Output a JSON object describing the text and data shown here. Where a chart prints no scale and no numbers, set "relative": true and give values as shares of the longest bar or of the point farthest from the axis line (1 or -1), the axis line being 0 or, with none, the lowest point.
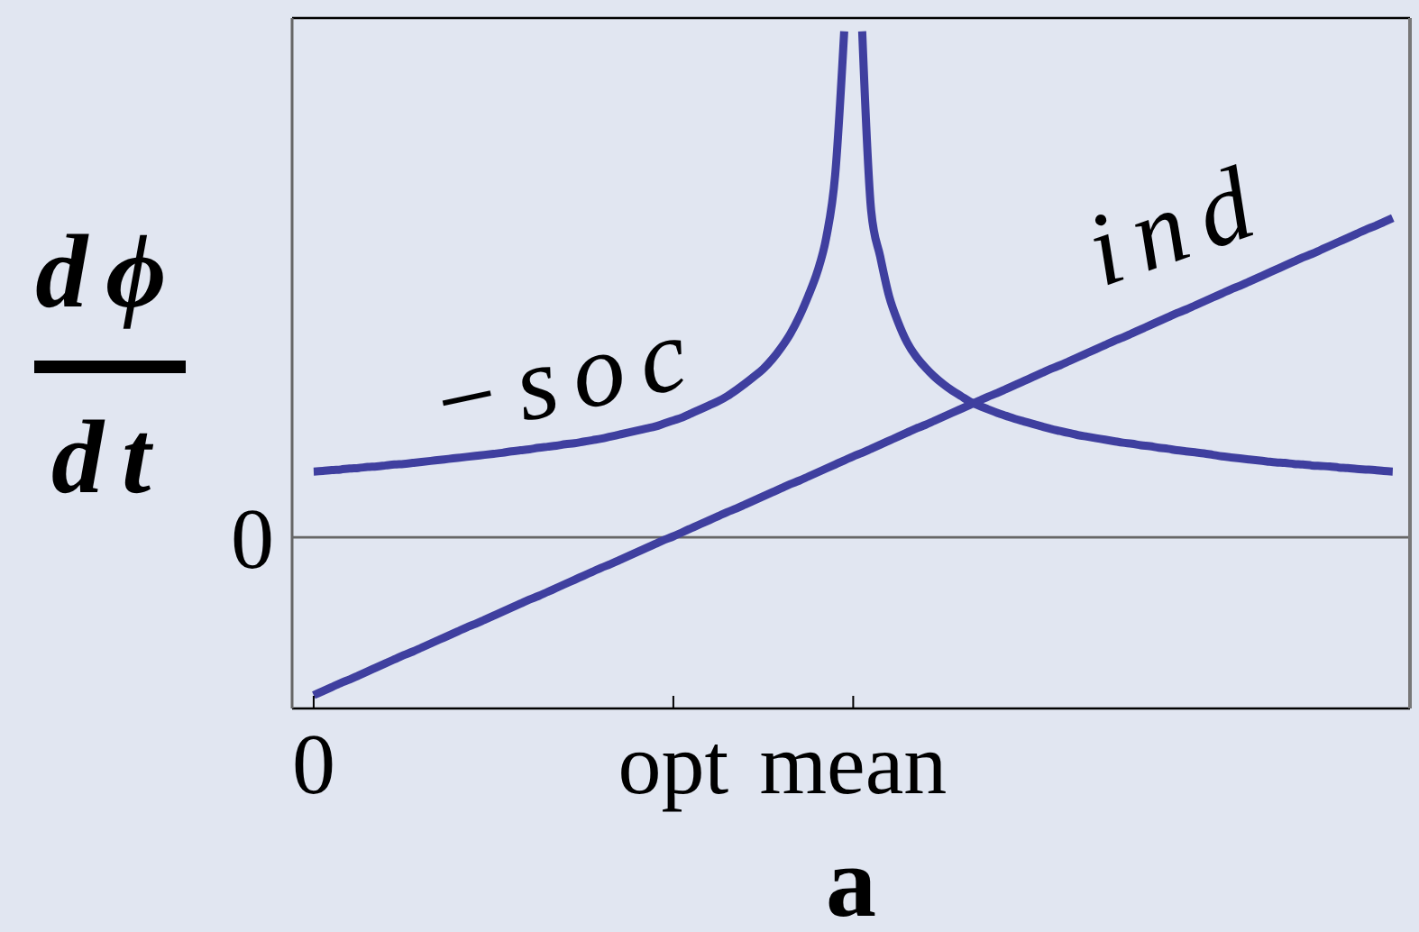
{
  "chart_data": {
    "type": "line",
    "xlabel": "a",
    "ylabel": "dϕ\ndt",
    "relative": true,
    "marker": "none",
    "categories": [
      "0",
      null,
      null,
      null,
      null,
      null,
      null,
      null,
      null,
      null,
      null,
      null,
      null,
      null,
      null,
      null,
      null,
      null,
      null,
      null,
      null,
      null,
      null,
      null,
      null,
      null,
      null,
      null,
      null,
      null,
      null,
      null,
      null,
      null,
      null,
      null,
      null,
      null,
      null,
      null,
      "opt",
      null,
      null,
      null,
      null,
      null,
      null,
      null,
      null,
      null,
      null,
      null,
      null,
      null,
      null,
      null,
      null,
      null,
      null,
      null,
      "mean",
      null,
      null,
      null,
      null,
      null,
      null,
      null,
      null,
      null,
      null,
      null,
      null,
      null,
      null,
      null,
      null,
      null,
      null,
      null,
      null,
      null,
      null,
      null,
      null,
      null,
      null,
      null,
      null,
      null,
      null,
      null,
      null,
      null,
      null,
      null,
      null,
      null,
      null,
      null,
      null,
      null,
      null,
      null,
      null,
      null,
      null,
      null,
      null,
      null,
      null,
      null,
      null,
      null,
      null,
      null,
      null,
      null,
      null,
      null,
      null
    ],
    "series": [
      {
        "name": "−soc",
        "color": "#3f3f9f",
        "values": [
          0.13,
          0.131,
          0.133,
          0.134,
          0.136,
          0.137,
          0.139,
          0.14,
          0.142,
          0.144,
          0.145,
          0.147,
          0.149,
          0.151,
          0.153,
          0.155,
          0.157,
          0.159,
          0.161,
          0.163,
          0.165,
          0.167,
          0.17,
          0.172,
          0.174,
          0.177,
          0.179,
          0.181,
          0.184,
          0.186,
          0.189,
          0.192,
          0.195,
          0.199,
          0.203,
          0.207,
          0.211,
          0.215,
          0.219,
          0.225,
          0.231,
          0.237,
          0.245,
          0.253,
          0.261,
          0.269,
          0.279,
          0.291,
          0.304,
          0.318,
          0.333,
          0.352,
          0.375,
          0.402,
          0.436,
          0.477,
          0.524,
          0.592,
          0.717,
          1,
          null,
          1,
          0.645,
          0.555,
          0.476,
          0.425,
          0.385,
          0.357,
          0.336,
          0.318,
          0.303,
          0.29,
          0.279,
          0.268,
          0.26,
          0.253,
          0.246,
          0.24,
          0.234,
          0.229,
          0.224,
          0.219,
          0.214,
          0.21,
          0.206,
          0.202,
          0.199,
          0.196,
          0.193,
          0.19,
          0.187,
          0.185,
          0.182,
          0.18,
          0.177,
          0.175,
          0.172,
          0.17,
          0.168,
          0.166,
          0.163,
          0.16,
          0.158,
          0.156,
          0.154,
          0.152,
          0.15,
          0.148,
          0.147,
          0.145,
          0.144,
          0.142,
          0.141,
          0.14,
          0.138,
          0.137,
          0.135,
          0.134,
          0.133,
          0.131,
          0.13
        ]
      },
      {
        "name": "ind",
        "color": "#3f3f9f",
        "values": [
          -0.312,
          -0.304,
          -0.296,
          -0.288,
          -0.281,
          -0.273,
          -0.265,
          -0.257,
          -0.249,
          -0.241,
          -0.233,
          -0.226,
          -0.218,
          -0.21,
          -0.202,
          -0.194,
          -0.186,
          -0.178,
          -0.171,
          -0.163,
          -0.155,
          -0.147,
          -0.139,
          -0.131,
          -0.123,
          -0.116,
          -0.108,
          -0.1,
          -0.092,
          -0.084,
          -0.076,
          -0.068,
          -0.06,
          -0.053,
          -0.045,
          -0.037,
          -0.029,
          -0.021,
          -0.013,
          -0.005,
          0.002,
          0.01,
          0.018,
          0.026,
          0.034,
          0.042,
          0.05,
          0.057,
          0.065,
          0.073,
          0.081,
          0.089,
          0.097,
          0.105,
          0.112,
          0.12,
          0.128,
          0.136,
          0.144,
          0.152,
          0.16,
          0.167,
          0.175,
          0.183,
          0.191,
          0.199,
          0.207,
          0.215,
          0.222,
          0.23,
          0.238,
          0.246,
          0.254,
          0.262,
          0.27,
          0.278,
          0.285,
          0.293,
          0.301,
          0.309,
          0.317,
          0.325,
          0.333,
          0.34,
          0.348,
          0.356,
          0.364,
          0.372,
          0.38,
          0.388,
          0.395,
          0.403,
          0.411,
          0.419,
          0.427,
          0.435,
          0.443,
          0.45,
          0.458,
          0.466,
          0.474,
          0.482,
          0.49,
          0.497,
          0.505,
          0.513,
          0.521,
          0.529,
          0.537,
          0.545,
          0.553,
          0.56,
          0.568,
          0.576,
          0.584,
          0.592,
          0.6,
          0.608,
          0.615,
          0.623,
          0.631
        ]
      }
    ],
    "ref_lines": [
      {
        "axis": "y",
        "value": 0,
        "label": "0"
      }
    ]
  }
}
